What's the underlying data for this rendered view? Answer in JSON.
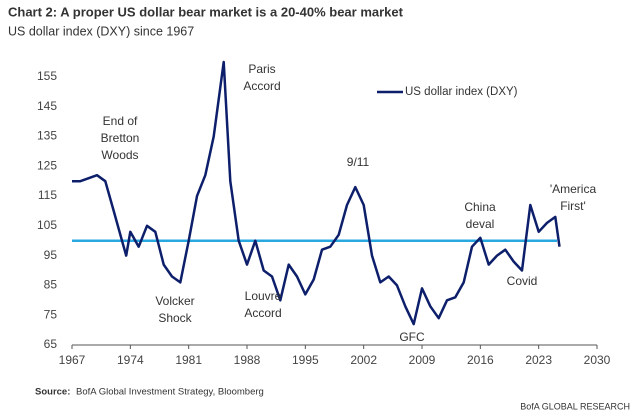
{
  "chart_data": {
    "type": "line",
    "title": "Chart 2: A proper US dollar bear market is a 20-40% bear market",
    "subtitle": "US dollar index (DXY) since 1967",
    "source_label": "Source:",
    "source": "BofA Global Investment Strategy, Bloomberg",
    "brand": "BofA GLOBAL RESEARCH",
    "x": [
      1967,
      1968,
      1969,
      1970,
      1971,
      1972,
      1973,
      1973.5,
      1974,
      1975,
      1976,
      1977,
      1978,
      1979,
      1980,
      1981,
      1982,
      1983,
      1984,
      1985.2,
      1986,
      1987,
      1988,
      1989,
      1990,
      1991,
      1992,
      1993,
      1994,
      1995,
      1996,
      1997,
      1998,
      1999,
      2000,
      2001,
      2002,
      2003,
      2004,
      2005,
      2006,
      2007,
      2008,
      2009,
      2010,
      2011,
      2012,
      2013,
      2014,
      2015,
      2016,
      2017,
      2018,
      2019,
      2020,
      2021,
      2022,
      2023,
      2024,
      2025,
      2025.5
    ],
    "series": [
      {
        "name": "US dollar index (DXY)",
        "color": "#0d1f6b",
        "values": [
          120,
          120,
          121,
          122,
          120,
          110,
          100,
          95,
          103,
          98,
          105,
          103,
          92,
          88,
          86,
          100,
          115,
          122,
          135,
          160,
          120,
          100,
          92,
          100,
          90,
          88,
          80,
          92,
          88,
          82,
          87,
          97,
          98,
          102,
          112,
          118,
          112,
          95,
          86,
          88,
          85,
          78,
          72,
          84,
          78,
          74,
          80,
          81,
          86,
          98,
          101,
          92,
          95,
          97,
          93,
          90,
          112,
          103,
          106,
          108,
          98
        ]
      }
    ],
    "xlim": [
      1967,
      2030
    ],
    "xticks": [
      1967,
      1974,
      1981,
      1988,
      1995,
      2002,
      2009,
      2016,
      2023,
      2030
    ],
    "ylim": [
      65,
      160
    ],
    "yticks": [
      65,
      75,
      85,
      95,
      105,
      115,
      125,
      135,
      145,
      155
    ],
    "reference_line": {
      "value": 100,
      "color": "#29a8e0"
    },
    "annotation_color": "#d9262c",
    "legend": "top-right",
    "annotations": [
      {
        "text": [
          "End of",
          "Bretton",
          "Woods"
        ]
      },
      {
        "text": [
          "Paris",
          "Accord"
        ]
      },
      {
        "text": [
          "9/11"
        ]
      },
      {
        "text": [
          "China",
          "deval"
        ]
      },
      {
        "text": [
          "'America",
          "First'"
        ]
      },
      {
        "text": [
          "Volcker",
          "Shock"
        ]
      },
      {
        "text": [
          "Louvre",
          "Accord"
        ]
      },
      {
        "text": [
          "GFC"
        ]
      },
      {
        "text": [
          "Covid"
        ]
      }
    ]
  }
}
